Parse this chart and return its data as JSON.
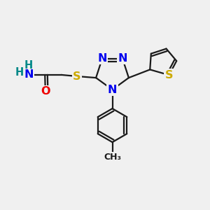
{
  "background_color": "#f0f0f0",
  "bond_color": "#1a1a1a",
  "bond_width": 1.6,
  "atom_colors": {
    "N": "#0000ee",
    "O": "#ee0000",
    "S": "#ccaa00",
    "H": "#008888",
    "C": "#1a1a1a"
  },
  "font_size": 11.5,
  "figsize": [
    3.0,
    3.0
  ],
  "dpi": 100,
  "xlim": [
    0,
    10
  ],
  "ylim": [
    0,
    10
  ]
}
